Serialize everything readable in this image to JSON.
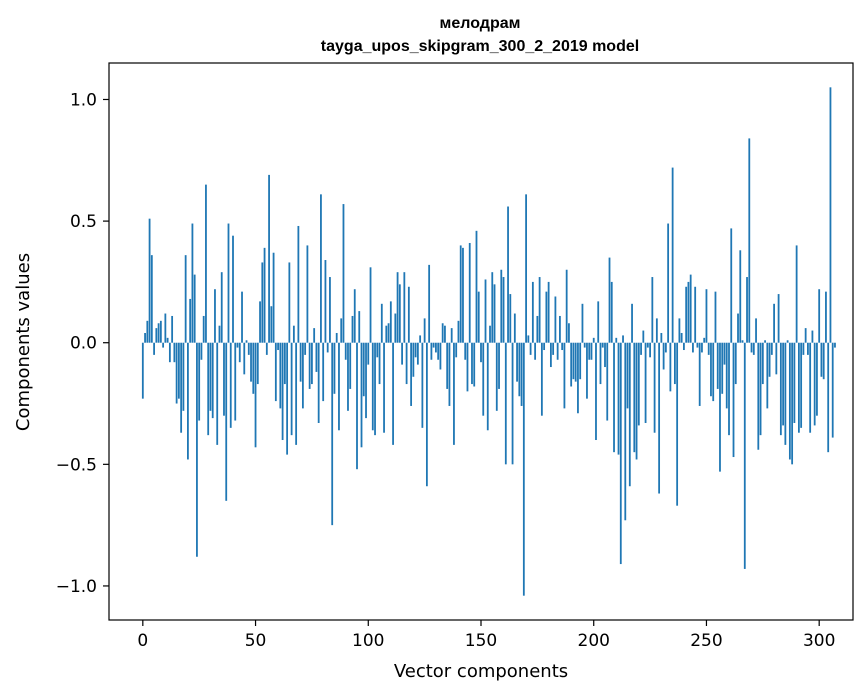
{
  "chart_data": {
    "type": "bar",
    "title": "мелодрам",
    "subtitle": "tayga_upos_skipgram_300_2_2019 model",
    "xlabel": "Vector components",
    "ylabel": "Components values",
    "xlim": [
      -15,
      315
    ],
    "ylim": [
      -1.14,
      1.15
    ],
    "xticks": [
      0,
      50,
      100,
      150,
      200,
      250,
      300
    ],
    "xtick_labels": [
      "0",
      "50",
      "100",
      "150",
      "200",
      "250",
      "300"
    ],
    "yticks": [
      -1.0,
      -0.5,
      0.0,
      0.5,
      1.0
    ],
    "ytick_labels": [
      "−1.0",
      "−0.5",
      "0.0",
      "0.5",
      "1.0"
    ],
    "bar_color": "#1f77b4",
    "values": [
      -0.23,
      0.04,
      0.09,
      0.51,
      0.36,
      -0.05,
      0.06,
      0.08,
      0.09,
      -0.02,
      0.12,
      0.02,
      -0.08,
      0.11,
      -0.08,
      -0.25,
      -0.23,
      -0.37,
      -0.28,
      0.36,
      -0.48,
      0.18,
      0.49,
      0.28,
      -0.88,
      -0.32,
      -0.07,
      0.11,
      0.65,
      -0.38,
      -0.28,
      -0.31,
      0.22,
      -0.42,
      0.07,
      0.29,
      -0.3,
      -0.65,
      0.49,
      -0.35,
      0.44,
      -0.32,
      -0.02,
      -0.08,
      0.21,
      -0.13,
      0.01,
      -0.05,
      -0.16,
      -0.21,
      -0.43,
      -0.17,
      0.17,
      0.33,
      0.39,
      -0.05,
      0.69,
      0.15,
      0.37,
      -0.24,
      -0.03,
      -0.27,
      -0.4,
      -0.17,
      -0.46,
      0.33,
      -0.38,
      0.07,
      -0.42,
      0.48,
      -0.16,
      -0.27,
      -0.05,
      0.4,
      -0.19,
      -0.17,
      0.06,
      -0.12,
      -0.33,
      0.61,
      -0.24,
      0.34,
      -0.04,
      0.27,
      -0.75,
      -0.21,
      0.04,
      -0.36,
      0.1,
      0.57,
      -0.07,
      -0.28,
      -0.19,
      0.11,
      0.22,
      -0.52,
      0.13,
      -0.43,
      -0.22,
      -0.31,
      -0.09,
      0.31,
      -0.36,
      -0.38,
      -0.06,
      -0.17,
      0.16,
      -0.37,
      0.07,
      0.08,
      0.17,
      -0.42,
      0.12,
      0.29,
      0.24,
      -0.09,
      0.29,
      -0.17,
      0.23,
      -0.26,
      -0.14,
      -0.06,
      -0.09,
      0.03,
      -0.35,
      0.1,
      -0.59,
      0.32,
      -0.07,
      -0.02,
      -0.04,
      -0.07,
      -0.11,
      0.08,
      0.07,
      -0.19,
      -0.26,
      0.06,
      -0.42,
      -0.06,
      0.09,
      0.4,
      0.39,
      -0.07,
      -0.2,
      0.41,
      -0.17,
      -0.18,
      0.46,
      0.21,
      -0.08,
      -0.3,
      0.26,
      -0.36,
      0.07,
      0.29,
      0.24,
      -0.28,
      -0.19,
      0.3,
      0.27,
      -0.5,
      0.56,
      0.2,
      -0.5,
      0.12,
      -0.16,
      -0.22,
      -0.26,
      -1.04,
      0.61,
      0.03,
      -0.05,
      0.25,
      -0.07,
      0.11,
      0.27,
      -0.3,
      -0.03,
      0.21,
      0.25,
      -0.1,
      -0.05,
      0.19,
      -0.07,
      0.11,
      -0.03,
      -0.27,
      0.3,
      0.08,
      -0.18,
      -0.15,
      -0.16,
      -0.29,
      -0.15,
      0.16,
      -0.02,
      -0.23,
      -0.07,
      -0.07,
      0.02,
      -0.4,
      0.17,
      -0.17,
      -0.02,
      -0.1,
      -0.32,
      0.35,
      0.25,
      -0.45,
      0.02,
      -0.46,
      -0.91,
      0.03,
      -0.73,
      -0.27,
      -0.59,
      0.16,
      -0.45,
      -0.48,
      -0.34,
      -0.05,
      0.05,
      -0.33,
      -0.02,
      -0.06,
      0.27,
      -0.37,
      0.1,
      -0.62,
      0.04,
      -0.11,
      -0.04,
      0.49,
      -0.2,
      0.72,
      -0.17,
      -0.67,
      0.1,
      0.04,
      -0.03,
      0.23,
      0.25,
      0.28,
      -0.04,
      0.23,
      -0.02,
      -0.26,
      -0.04,
      0.02,
      0.22,
      -0.05,
      -0.22,
      -0.24,
      0.21,
      -0.19,
      -0.53,
      -0.21,
      -0.09,
      -0.27,
      -0.38,
      0.47,
      -0.47,
      -0.17,
      0.12,
      0.38,
      0.01,
      -0.93,
      0.27,
      0.84,
      -0.04,
      -0.05,
      0.1,
      -0.44,
      -0.38,
      -0.17,
      0.01,
      -0.27,
      -0.14,
      -0.05,
      0.16,
      -0.13,
      0.2,
      -0.38,
      -0.34,
      -0.42,
      0.01,
      -0.48,
      -0.5,
      -0.33,
      0.4,
      -0.37,
      -0.35,
      -0.05,
      0.06,
      -0.05,
      -0.37,
      0.05,
      -0.34,
      -0.3,
      0.22,
      -0.14,
      -0.15,
      0.21,
      -0.45,
      1.05,
      -0.39,
      -0.02
    ]
  }
}
